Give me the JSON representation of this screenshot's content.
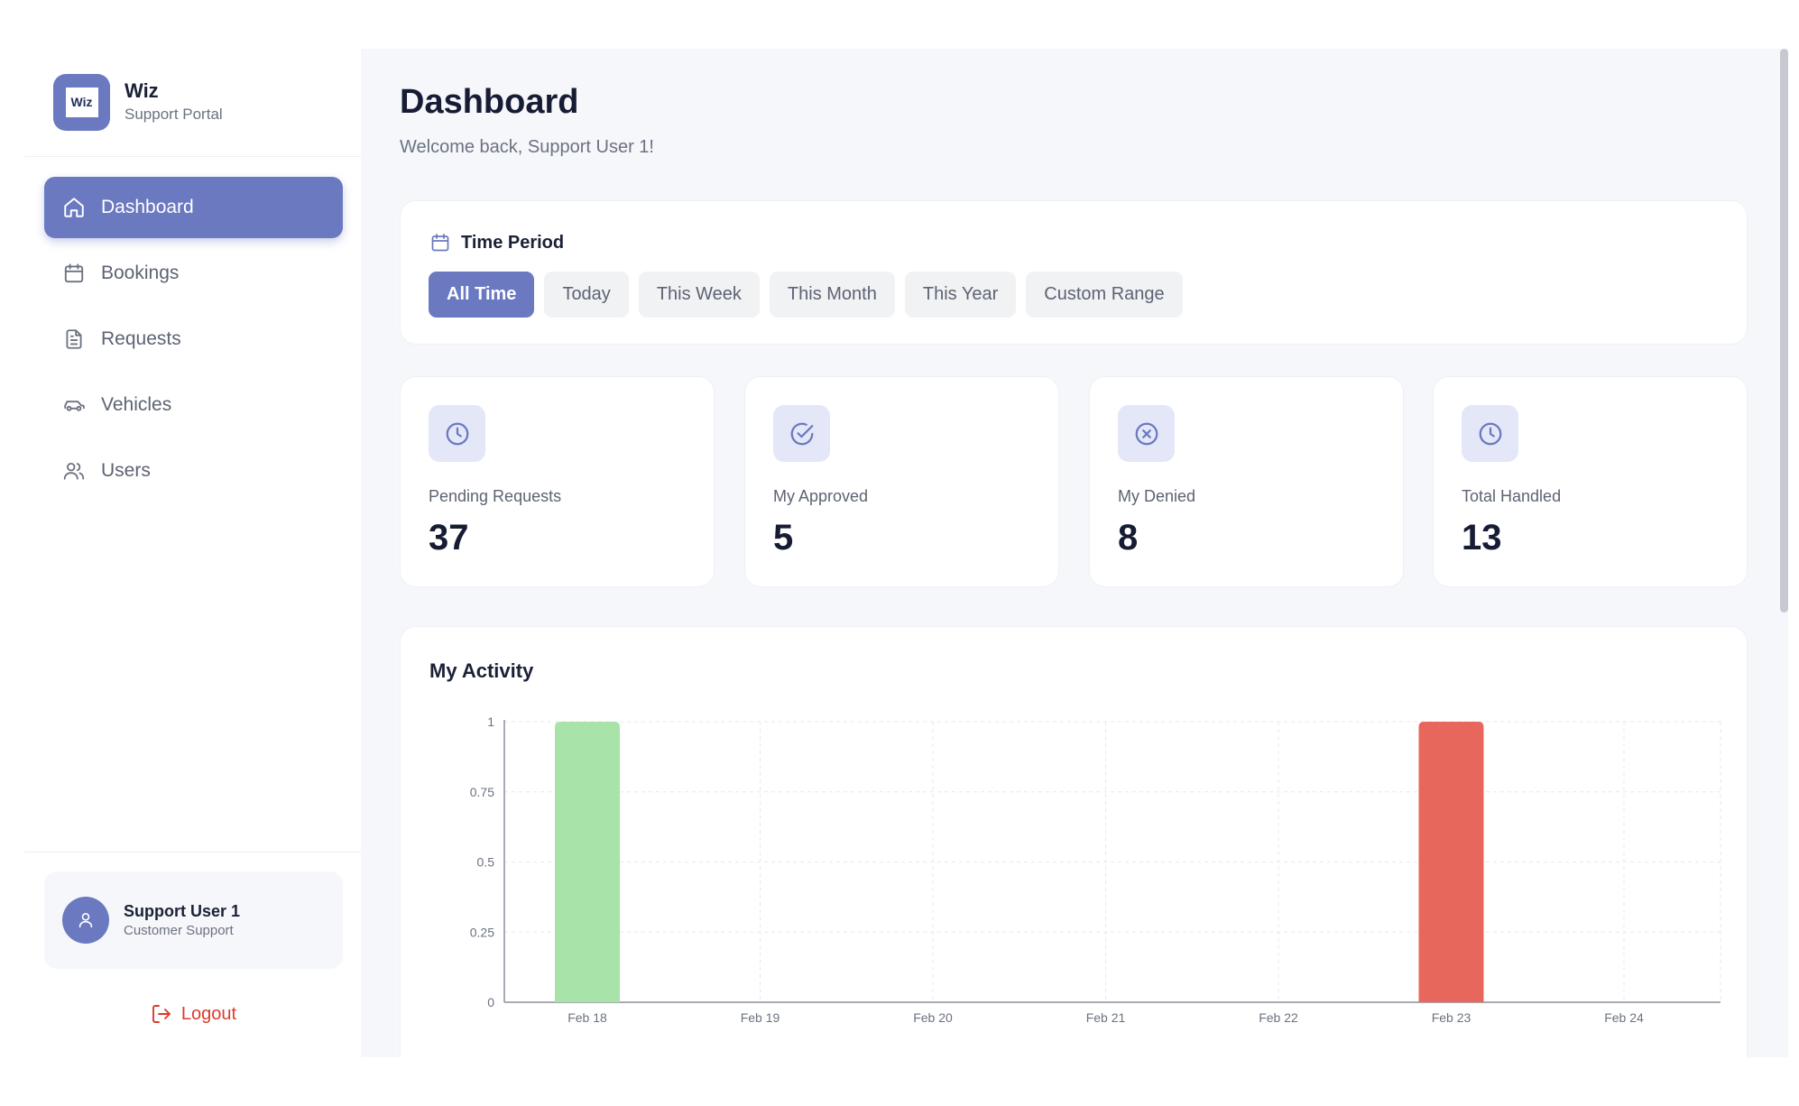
{
  "brand": {
    "title": "Wiz",
    "subtitle": "Support Portal",
    "logo_text": "Wiz"
  },
  "nav": [
    {
      "label": "Dashboard",
      "icon": "home-icon",
      "active": true
    },
    {
      "label": "Bookings",
      "icon": "calendar-icon",
      "active": false
    },
    {
      "label": "Requests",
      "icon": "document-icon",
      "active": false
    },
    {
      "label": "Vehicles",
      "icon": "car-icon",
      "active": false
    },
    {
      "label": "Users",
      "icon": "users-icon",
      "active": false
    }
  ],
  "user": {
    "name": "Support User 1",
    "role": "Customer Support"
  },
  "logout_label": "Logout",
  "page": {
    "title": "Dashboard",
    "subtitle": "Welcome back, Support User 1!"
  },
  "time_period": {
    "title": "Time Period",
    "options": [
      "All Time",
      "Today",
      "This Week",
      "This Month",
      "This Year",
      "Custom Range"
    ],
    "selected": "All Time"
  },
  "stats": [
    {
      "label": "Pending Requests",
      "value": "37",
      "icon": "clock-icon"
    },
    {
      "label": "My Approved",
      "value": "5",
      "icon": "check-circle-icon"
    },
    {
      "label": "My Denied",
      "value": "8",
      "icon": "x-circle-icon"
    },
    {
      "label": "Total Handled",
      "value": "13",
      "icon": "clock-icon"
    }
  ],
  "activity": {
    "title": "My Activity"
  },
  "colors": {
    "accent": "#6a79c0",
    "approved": "#a8e4aa",
    "denied": "#e8675d",
    "logout": "#dc3b2a"
  },
  "chart_data": {
    "type": "bar",
    "title": "My Activity",
    "categories": [
      "Feb 18",
      "Feb 19",
      "Feb 20",
      "Feb 21",
      "Feb 22",
      "Feb 23",
      "Feb 24"
    ],
    "series": [
      {
        "values": [
          1,
          0,
          0,
          0,
          0,
          0,
          0
        ],
        "color": "#a8e4aa"
      },
      {
        "values": [
          0,
          0,
          0,
          0,
          0,
          1,
          0
        ],
        "color": "#e8675d"
      }
    ],
    "yticks": [
      "0",
      "0.25",
      "0.5",
      "0.75",
      "1"
    ],
    "ylim": [
      0,
      1
    ],
    "grid": true,
    "stacked": true
  }
}
